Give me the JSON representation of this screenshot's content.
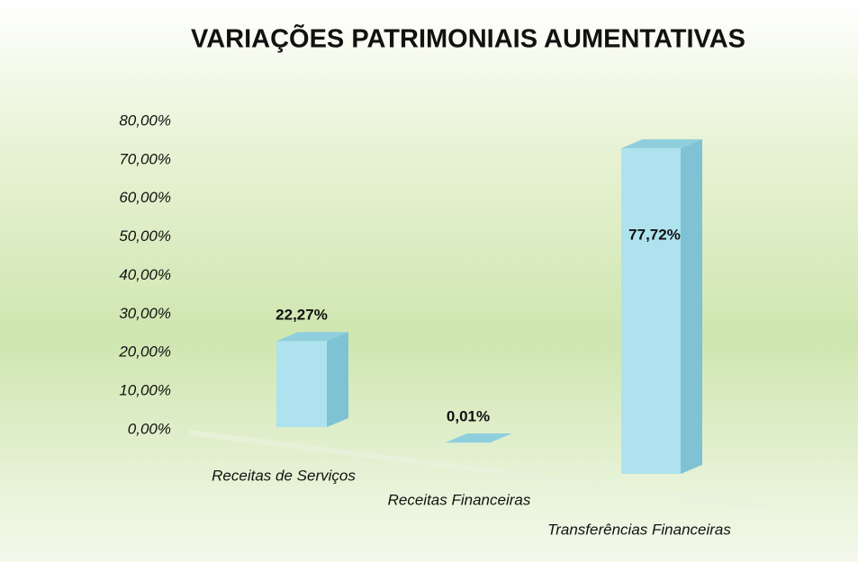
{
  "chart_data": {
    "type": "bar3d",
    "title": "VARIAÇÕES PATRIMONIAIS AUMENTATIVAS",
    "categories": [
      "Receitas de Serviços",
      "Receitas Financeiras",
      "Transferências Financeiras"
    ],
    "values": [
      22.27,
      0.01,
      77.72
    ],
    "value_labels": [
      "22,27%",
      "0,01%",
      "77,72%"
    ],
    "color": "#aee2ee",
    "ylim": [
      0,
      80
    ],
    "yticks": [
      {
        "value": 0,
        "label": "0,00%"
      },
      {
        "value": 10,
        "label": "10,00%"
      },
      {
        "value": 20,
        "label": "20,00%"
      },
      {
        "value": 30,
        "label": "30,00%"
      },
      {
        "value": 40,
        "label": "40,00%"
      },
      {
        "value": 50,
        "label": "50,00%"
      },
      {
        "value": 60,
        "label": "60,00%"
      },
      {
        "value": 70,
        "label": "70,00%"
      },
      {
        "value": 80,
        "label": "80,00%"
      }
    ]
  }
}
